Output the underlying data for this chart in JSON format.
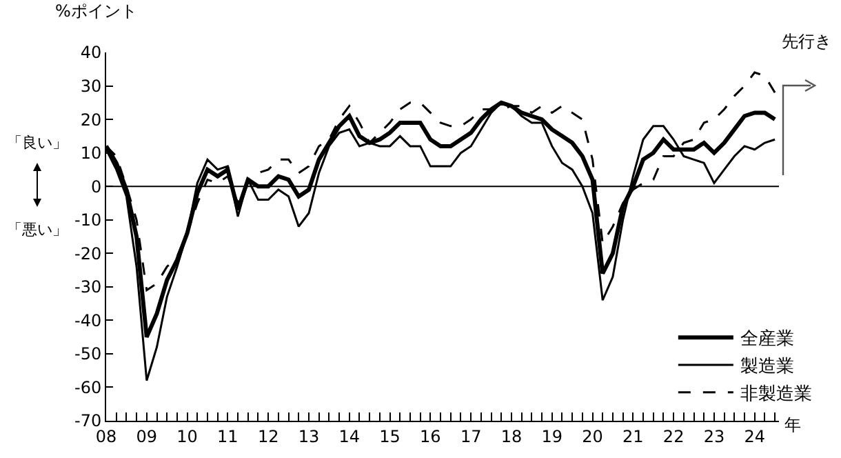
{
  "chart_data": {
    "type": "line",
    "ylabel": "%ポイント",
    "xlabel": "年",
    "annotations": [
      "「良い」",
      "「悪い」",
      "先行き"
    ],
    "x": [
      2008,
      2008.25,
      2008.5,
      2008.75,
      2009,
      2009.25,
      2009.5,
      2009.75,
      2010,
      2010.25,
      2010.5,
      2010.75,
      2011,
      2011.25,
      2011.5,
      2011.75,
      2012,
      2012.25,
      2012.5,
      2012.75,
      2013,
      2013.25,
      2013.5,
      2013.75,
      2014,
      2014.25,
      2014.5,
      2014.75,
      2015,
      2015.25,
      2015.5,
      2015.75,
      2016,
      2016.25,
      2016.5,
      2016.75,
      2017,
      2017.25,
      2017.5,
      2017.75,
      2018,
      2018.25,
      2018.5,
      2018.75,
      2019,
      2019.25,
      2019.5,
      2019.75,
      2020,
      2020.25,
      2020.5,
      2020.75,
      2021,
      2021.25,
      2021.5,
      2021.75,
      2022,
      2022.25,
      2022.5,
      2022.75,
      2023,
      2023.25,
      2023.5,
      2023.75,
      2024,
      2024.25,
      2024.5
    ],
    "series": [
      {
        "name": "全産業",
        "color": "#000000",
        "line_style": "solid",
        "values": [
          12,
          7,
          -1,
          -15,
          -45,
          -38,
          -28,
          -22,
          -14,
          -2,
          5,
          3,
          5,
          -7,
          2,
          0,
          0,
          3,
          2,
          -3,
          -1,
          8,
          13,
          18,
          21,
          15,
          13,
          14,
          16,
          19,
          19,
          19,
          14,
          12,
          12,
          14,
          16,
          20,
          23,
          25,
          24,
          22,
          21,
          20,
          17,
          15,
          13,
          9,
          2,
          -26,
          -20,
          -6,
          0,
          8,
          10,
          14,
          11,
          11,
          11,
          13,
          10,
          13,
          17,
          21,
          22,
          22,
          20
        ]
      },
      {
        "name": "製造業",
        "color": "#000000",
        "line_style": "solid",
        "values": [
          11,
          5,
          -3,
          -24,
          -58,
          -48,
          -33,
          -24,
          -14,
          1,
          8,
          5,
          6,
          -9,
          2,
          -4,
          -4,
          -1,
          -3,
          -12,
          -8,
          4,
          12,
          16,
          17,
          12,
          13,
          12,
          12,
          15,
          12,
          12,
          6,
          6,
          6,
          10,
          12,
          17,
          22,
          25,
          24,
          21,
          19,
          19,
          12,
          7,
          5,
          0,
          -8,
          -34,
          -27,
          -10,
          3,
          14,
          18,
          18,
          14,
          9,
          8,
          7,
          1,
          5,
          9,
          12,
          11,
          13,
          14
        ]
      },
      {
        "name": "非製造業",
        "color": "#000000",
        "line_style": "dashed",
        "values": [
          12,
          9,
          0,
          -10,
          -31,
          -29,
          -24,
          -21,
          -14,
          -5,
          2,
          1,
          3,
          -5,
          2,
          4,
          5,
          8,
          8,
          4,
          6,
          12,
          14,
          20,
          24,
          19,
          13,
          16,
          19,
          23,
          25,
          25,
          22,
          19,
          18,
          18,
          20,
          23,
          23,
          23,
          24,
          24,
          22,
          24,
          22,
          24,
          22,
          20,
          8,
          -17,
          -12,
          -5,
          -1,
          1,
          2,
          9,
          9,
          13,
          14,
          19,
          20,
          23,
          27,
          30,
          34,
          33,
          28
        ]
      }
    ],
    "xlim": [
      2008,
      2024.6
    ],
    "xticks": [
      {
        "value": 2008,
        "label": "08"
      },
      {
        "value": 2009,
        "label": "09"
      },
      {
        "value": 2010,
        "label": "10"
      },
      {
        "value": 2011,
        "label": "11"
      },
      {
        "value": 2012,
        "label": "12"
      },
      {
        "value": 2013,
        "label": "13"
      },
      {
        "value": 2014,
        "label": "14"
      },
      {
        "value": 2015,
        "label": "15"
      },
      {
        "value": 2016,
        "label": "16"
      },
      {
        "value": 2017,
        "label": "17"
      },
      {
        "value": 2018,
        "label": "18"
      },
      {
        "value": 2019,
        "label": "19"
      },
      {
        "value": 2020,
        "label": "20"
      },
      {
        "value": 2021,
        "label": "21"
      },
      {
        "value": 2022,
        "label": "22"
      },
      {
        "value": 2023,
        "label": "23"
      },
      {
        "value": 2024,
        "label": "24"
      }
    ],
    "ylim": [
      -70,
      40
    ],
    "yticks": [
      -70,
      -60,
      -50,
      -40,
      -30,
      -20,
      -10,
      0,
      10,
      20,
      30,
      40
    ],
    "ref_lines": [
      {
        "axis": "y",
        "value": 0,
        "color": "#000000"
      }
    ],
    "grid": false,
    "legend": "bottom right",
    "marker": "none"
  }
}
